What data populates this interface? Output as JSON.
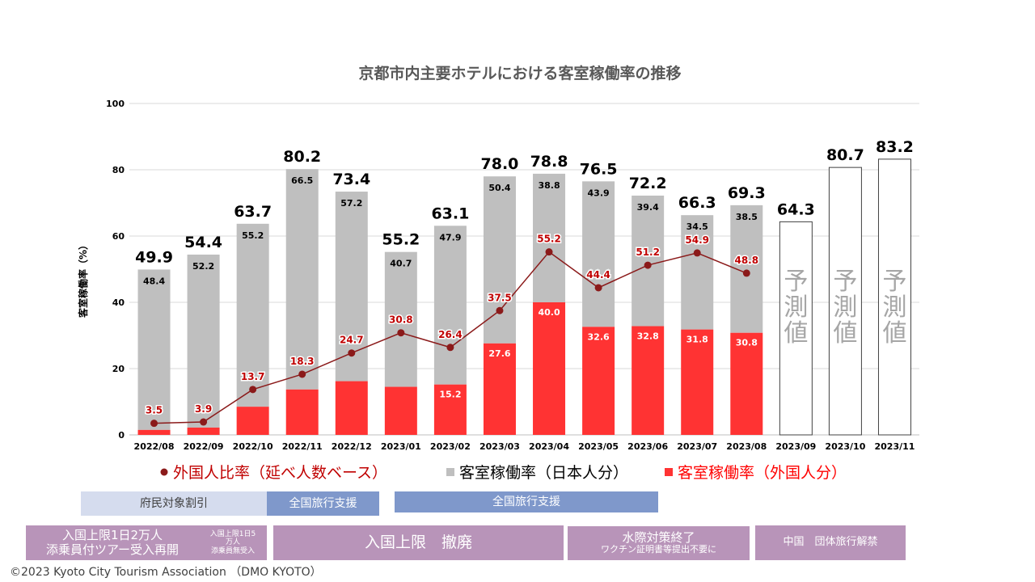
{
  "chart_data": {
    "type": "bar",
    "title": "京都市内主要ホテルにおける客室稼働率の推移",
    "ylabel": "客室稼働率（%）",
    "ylim": [
      0,
      100
    ],
    "yticks": [
      0,
      20,
      40,
      60,
      80,
      100
    ],
    "categories": [
      "2022/08",
      "2022/09",
      "2022/10",
      "2022/11",
      "2022/12",
      "2023/01",
      "2023/02",
      "2023/03",
      "2023/04",
      "2023/05",
      "2023/06",
      "2023/07",
      "2023/08",
      "2023/09",
      "2023/10",
      "2023/11"
    ],
    "totals": [
      49.9,
      54.4,
      63.7,
      80.2,
      73.4,
      55.2,
      63.1,
      78.0,
      78.8,
      76.5,
      72.2,
      66.3,
      69.3,
      64.3,
      80.7,
      83.2
    ],
    "total_labels": [
      "49.9",
      "54.4",
      "63.7",
      "80.2",
      "73.4",
      "55.2",
      "63.1",
      "78.0",
      "78.8",
      "76.5",
      "72.2",
      "66.3",
      "69.3",
      "64.3",
      "80.7",
      "83.2"
    ],
    "series": [
      {
        "name": "客室稼働率（日本人分）",
        "type": "bar",
        "color": "#bfbfbf",
        "values": [
          48.4,
          52.2,
          55.2,
          66.5,
          57.2,
          40.7,
          47.9,
          50.4,
          38.8,
          43.9,
          39.4,
          34.5,
          38.5,
          null,
          null,
          null
        ],
        "labels": [
          "48.4",
          "52.2",
          "55.2",
          "66.5",
          "57.2",
          "40.7",
          "47.9",
          "50.4",
          "38.8",
          "43.9",
          "39.4",
          "34.5",
          "38.5",
          "",
          "",
          ""
        ]
      },
      {
        "name": "客室稼働率（外国人分）",
        "type": "bar",
        "color": "#ff3333",
        "values": [
          1.5,
          2.2,
          8.5,
          13.7,
          16.2,
          14.5,
          15.2,
          27.6,
          40.0,
          32.6,
          32.8,
          31.8,
          30.8,
          null,
          null,
          null
        ],
        "labels": [
          "",
          "",
          "",
          "",
          "",
          "",
          "15.2",
          "27.6",
          "40.0",
          "32.6",
          "32.8",
          "31.8",
          "30.8",
          "",
          "",
          ""
        ]
      },
      {
        "name": "外国人比率（延べ人数ベース）",
        "type": "line",
        "color": "#8b1a1a",
        "values": [
          3.5,
          3.9,
          13.7,
          18.3,
          24.7,
          30.8,
          26.4,
          37.5,
          55.2,
          44.4,
          51.2,
          54.9,
          48.8,
          null,
          null,
          null
        ],
        "labels": [
          "3.5",
          "3.9",
          "13.7",
          "18.3",
          "24.7",
          "30.8",
          "26.4",
          "37.5",
          "55.2",
          "44.4",
          "51.2",
          "54.9",
          "48.8",
          "",
          "",
          ""
        ]
      }
    ],
    "forecast_label": "予測値",
    "legend": [
      {
        "marker": "●",
        "text": "外国人比率（延べ人数ベース）",
        "color": "#8b1a1a",
        "text_color": "#c00000"
      },
      {
        "marker": "■",
        "text": "客室稼働率（日本人分）",
        "color": "#bfbfbf",
        "text_color": "#000000"
      },
      {
        "marker": "■",
        "text": "客室稼働率（外国人分）",
        "color": "#ff3333",
        "text_color": "#ff0000"
      }
    ],
    "legend_placement": "bottom",
    "grid": true
  },
  "timeline": {
    "row1": [
      {
        "text": "府民対象割引"
      },
      {
        "text": "全国旅行支援"
      },
      {
        "text": "全国旅行支援"
      }
    ],
    "row2": [
      {
        "main": "入国上限1日2万人\n添乗員付ツアー受入再開",
        "sub": ""
      },
      {
        "main": "入国上限1日5\n万人\n添乗員無受入",
        "sub": ""
      },
      {
        "main": "入国上限　撤廃",
        "sub": ""
      },
      {
        "main": "水際対策終了",
        "sub": "ワクチン証明書等提出不要に"
      },
      {
        "main": "中国　団体旅行解禁",
        "sub": ""
      }
    ]
  },
  "copyright": "©2023 Kyoto City Tourism Association （DMO KYOTO）"
}
